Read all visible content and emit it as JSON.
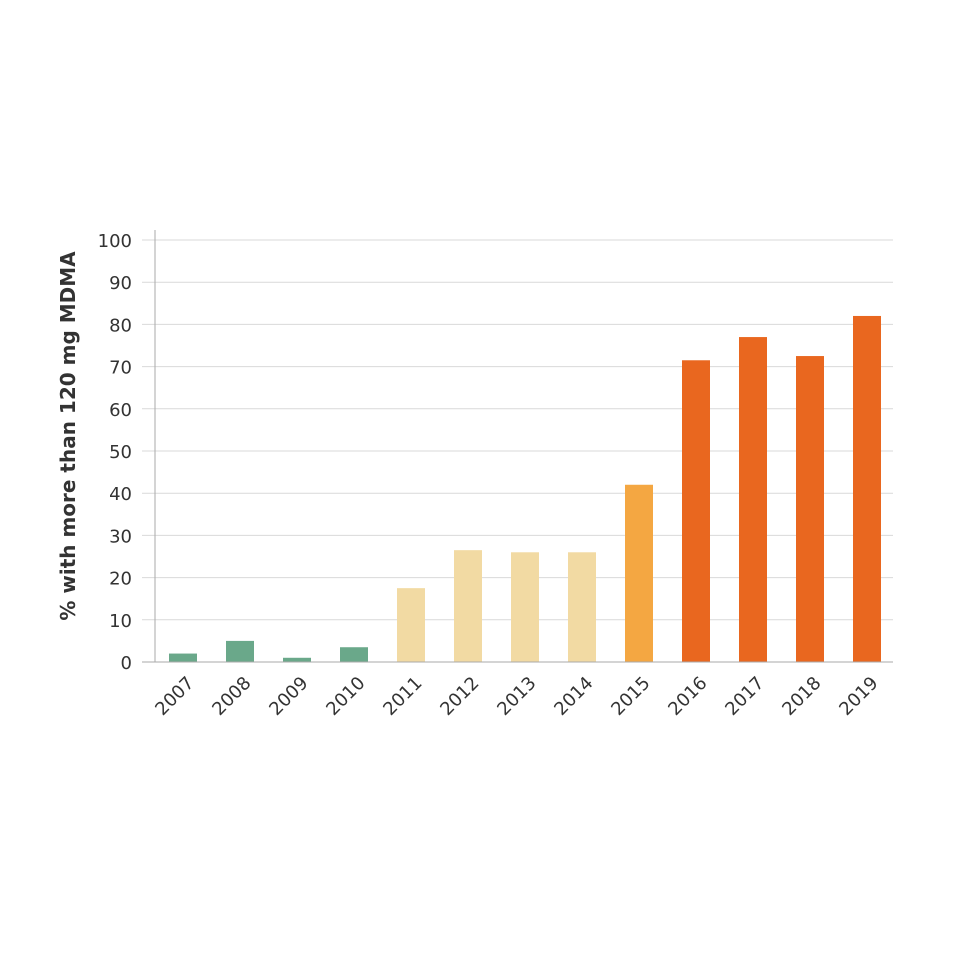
{
  "chart_data": {
    "type": "bar",
    "title": "",
    "xlabel": "",
    "ylabel": "% with more than 120 mg MDMA",
    "ylim": [
      0,
      100
    ],
    "yticks": [
      0,
      10,
      20,
      30,
      40,
      50,
      60,
      70,
      80,
      90,
      100
    ],
    "grid": true,
    "categories": [
      "2007",
      "2008",
      "2009",
      "2010",
      "2011",
      "2012",
      "2013",
      "2014",
      "2015",
      "2016",
      "2017",
      "2018",
      "2019"
    ],
    "values": [
      2,
      5,
      1,
      3.5,
      17.5,
      26.5,
      26,
      26,
      42,
      71.5,
      77,
      72.5,
      82
    ],
    "colors": [
      "#6aa88a",
      "#6aa88a",
      "#6aa88a",
      "#6aa88a",
      "#f2daa3",
      "#f2daa3",
      "#f2daa3",
      "#f2daa3",
      "#f4a742",
      "#e9671f",
      "#e9671f",
      "#e9671f",
      "#e9671f"
    ]
  }
}
